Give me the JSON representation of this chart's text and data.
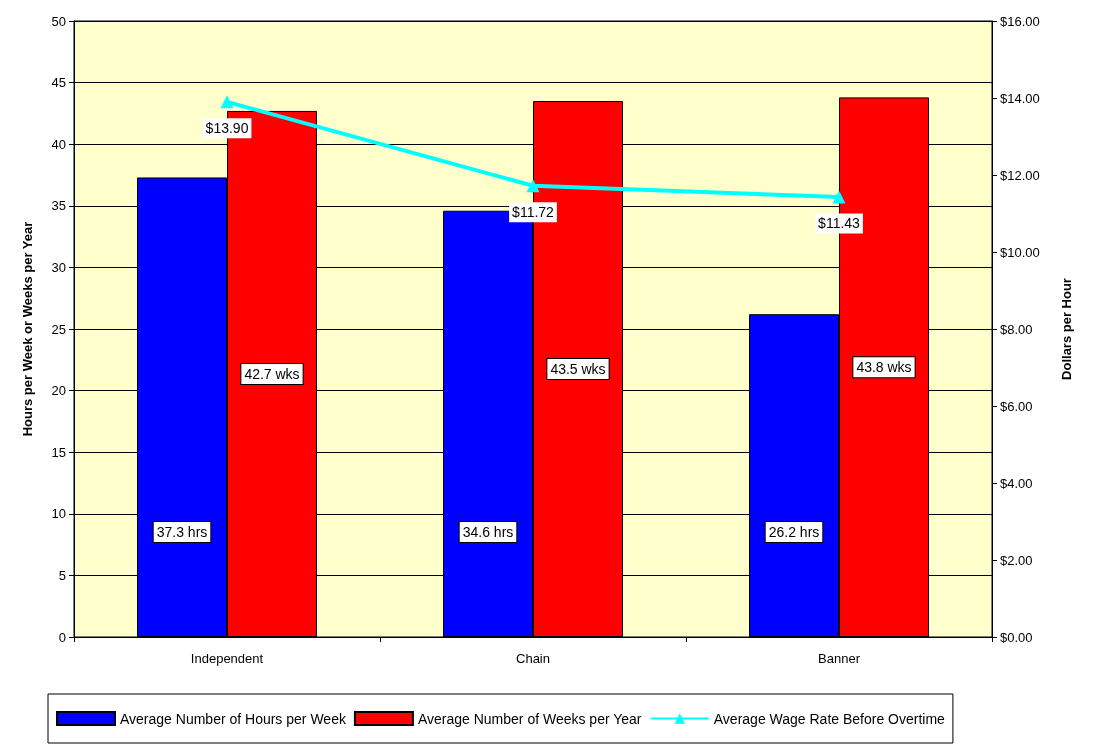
{
  "chart_data": {
    "type": "bar",
    "ylabel": "Hours per Week or Weeks per Year",
    "y2label": "Dollars per Hour",
    "categories": [
      "Independent",
      "Chain",
      "Banner"
    ],
    "series": [
      {
        "name": "Average Number of Hours per Week",
        "color": "#0000ff",
        "values": [
          37.3,
          34.6,
          26.2
        ],
        "value_labels": [
          "37.3 hrs",
          "34.6 hrs",
          "26.2 hrs"
        ]
      },
      {
        "name": "Average Number of Weeks per Year",
        "color": "#ff0000",
        "values": [
          42.7,
          43.5,
          43.8
        ],
        "value_labels": [
          "42.7 wks",
          "43.5 wks",
          "43.8 wks"
        ]
      },
      {
        "name": "Average Wage Rate Before Overtime",
        "type": "line",
        "axis": "y2",
        "color": "#00ffff",
        "marker": "triangle",
        "values": [
          13.9,
          11.72,
          11.43
        ],
        "value_labels": [
          "$13.90",
          "$11.72",
          "$11.43"
        ]
      }
    ],
    "ylim": [
      0,
      50
    ],
    "yticks": [
      0,
      5,
      10,
      15,
      20,
      25,
      30,
      35,
      40,
      45,
      50
    ],
    "y2lim": [
      0,
      16
    ],
    "y2ticks": [
      {
        "value": 0,
        "label": "$0.00"
      },
      {
        "value": 2,
        "label": "$2.00"
      },
      {
        "value": 4,
        "label": "$4.00"
      },
      {
        "value": 6,
        "label": "$6.00"
      },
      {
        "value": 8,
        "label": "$8.00"
      },
      {
        "value": 10,
        "label": "$10.00"
      },
      {
        "value": 12,
        "label": "$12.00"
      },
      {
        "value": 14,
        "label": "$14.00"
      },
      {
        "value": 16,
        "label": "$16.00"
      }
    ],
    "grid": "y",
    "legend": "bottom"
  }
}
